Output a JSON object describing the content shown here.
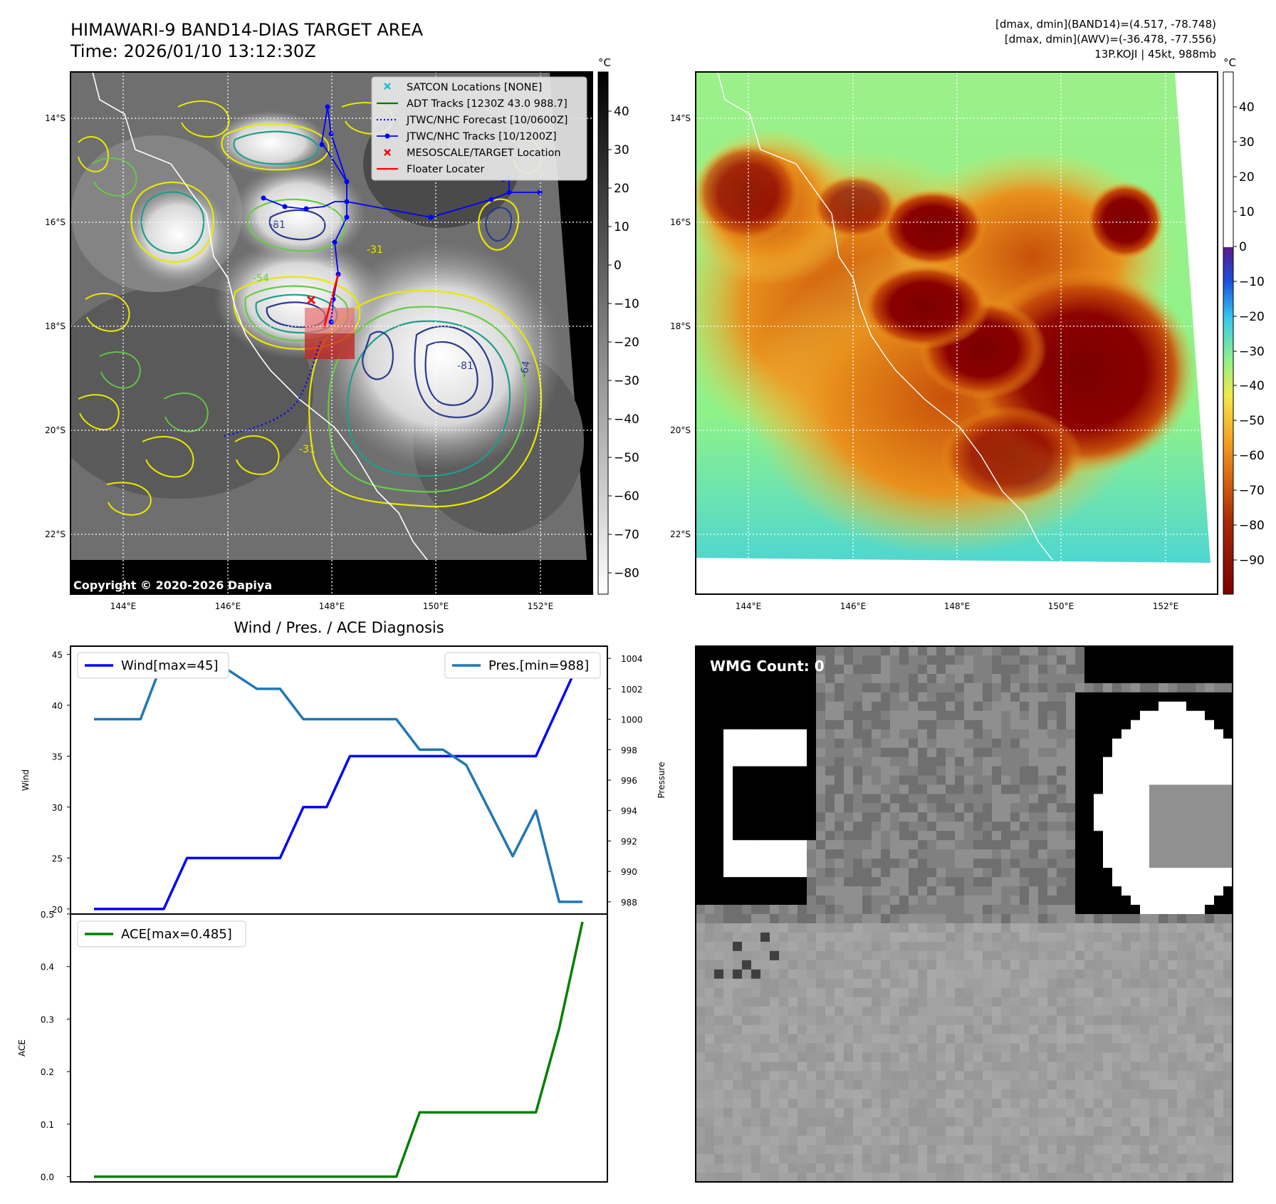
{
  "header": {
    "title": "HIMAWARI-9 BAND14-DIAS TARGET AREA",
    "time": "Time: 2026/01/10 13:12:30Z",
    "stats_band14": "[dmax, dmin](BAND14)=(4.517, -78.748)",
    "stats_awv": "[dmax, dmin](AWV)=(-36.478, -77.556)",
    "storm": "13P.KOJI | 45kt, 988mb"
  },
  "map": {
    "lat_labels": [
      "14°S",
      "16°S",
      "18°S",
      "20°S",
      "22°S"
    ],
    "lon_labels": [
      "144°E",
      "146°E",
      "148°E",
      "150°E",
      "152°E"
    ],
    "copyright": "Copyright © 2020-2026 Dapiya",
    "contour_labels": [
      "-81",
      "-31",
      "-54",
      "-64",
      "-81",
      "-31"
    ]
  },
  "colorbar_left": {
    "unit": "°C",
    "ticks": [
      "40",
      "30",
      "20",
      "10",
      "0",
      "−10",
      "−20",
      "−30",
      "−40",
      "−50",
      "−60",
      "−70",
      "−80"
    ]
  },
  "colorbar_right": {
    "unit": "°C",
    "ticks": [
      "40",
      "30",
      "20",
      "10",
      "0",
      "−10",
      "−20",
      "−30",
      "−40",
      "−50",
      "−60",
      "−70",
      "−80",
      "−90"
    ]
  },
  "legend": {
    "items": [
      {
        "label": "SATCON Locations [NONE]",
        "color": "#17becf",
        "marker": "x"
      },
      {
        "label": "ADT Tracks [1230Z 43.0 988.7]",
        "color": "#007700",
        "marker": "line"
      },
      {
        "label": "JTWC/NHC Forecast [10/0600Z]",
        "color": "#0000ff",
        "marker": "dotted"
      },
      {
        "label": "JTWC/NHC Tracks [10/1200Z]",
        "color": "#0000ff",
        "marker": "line-dot"
      },
      {
        "label": "MESOSCALE/TARGET Location",
        "color": "#ff0000",
        "marker": "x"
      },
      {
        "label": "Floater Locater",
        "color": "#ff0000",
        "marker": "line"
      }
    ]
  },
  "wmg": {
    "label": "WMG Count: 0"
  },
  "chart_data": [
    {
      "type": "line",
      "title": "Wind / Pres. / ACE Diagnosis",
      "ylabel": "Wind",
      "y2label": "Pressure",
      "ylim": [
        19.5,
        45.8
      ],
      "y2lim": [
        987.2,
        1004.8
      ],
      "yticks": [
        20,
        25,
        30,
        35,
        40,
        45
      ],
      "y2ticks": [
        988,
        990,
        992,
        994,
        996,
        998,
        1000,
        1002,
        1004
      ],
      "x": [
        0,
        1,
        2,
        3,
        4,
        5,
        6,
        7,
        8,
        9,
        10,
        11,
        12,
        13,
        14,
        15,
        16,
        17,
        18,
        19,
        20,
        21
      ],
      "series": [
        {
          "name": "Wind[max=45]",
          "axis": "left",
          "color": "#0000ff",
          "values": [
            20,
            20,
            20,
            20,
            25,
            25,
            25,
            25,
            25,
            30,
            30,
            35,
            35,
            35,
            35,
            35,
            35,
            35,
            35,
            35,
            40,
            45
          ]
        },
        {
          "name": "Pres.[min=988]",
          "axis": "right",
          "color": "#1f77b4",
          "values": [
            1000,
            1000,
            1000,
            1004,
            1004,
            1004,
            1003,
            1002,
            1002,
            1000,
            1000,
            1000,
            1000,
            1000,
            998,
            998,
            997,
            994,
            991,
            994,
            988,
            988
          ]
        }
      ],
      "legend": [
        "top-left",
        "top-right"
      ]
    },
    {
      "type": "line",
      "ylabel": "ACE",
      "ylim": [
        -0.01,
        0.5
      ],
      "yticks": [
        0.0,
        0.1,
        0.2,
        0.3,
        0.4,
        0.5
      ],
      "x": [
        0,
        1,
        2,
        3,
        4,
        5,
        6,
        7,
        8,
        9,
        10,
        11,
        12,
        13,
        14,
        15,
        16,
        17,
        18,
        19,
        20,
        21
      ],
      "series": [
        {
          "name": "ACE[max=0.485]",
          "axis": "left",
          "color": "#008000",
          "values": [
            0,
            0,
            0,
            0,
            0,
            0,
            0,
            0,
            0,
            0,
            0,
            0,
            0,
            0,
            0.1225,
            0.1225,
            0.1225,
            0.1225,
            0.1225,
            0.1225,
            0.2825,
            0.485
          ]
        }
      ],
      "legend": "top-left"
    }
  ]
}
